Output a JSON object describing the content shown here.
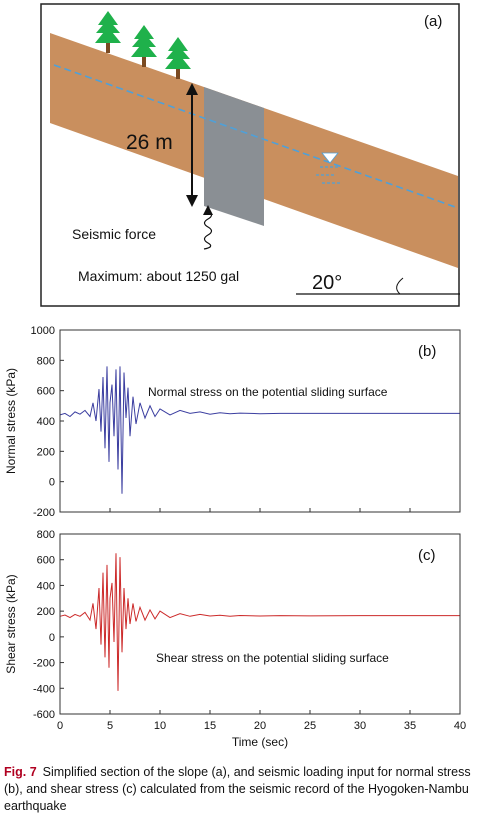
{
  "panel_a": {
    "label": "(a)",
    "depth_label": "26 m",
    "force_label": "Seismic force",
    "max_label": "Maximum: about 1250 gal",
    "angle_label": "20°",
    "colors": {
      "soil": "#c98f5e",
      "zone": "#8a8f94",
      "tree": "#1fb14b",
      "water": "#4fa0d8"
    }
  },
  "caption": {
    "fig": "Fig. 7",
    "text": "Simplified section of the slope (a), and seismic loading input for normal stress (b), and shear stress (c) calculated from the seismic record of the Hyogoken-Nambu earthquake"
  },
  "chart_data": [
    {
      "type": "line",
      "panel_label": "(b)",
      "annotation": "Normal stress on the potential sliding surface",
      "ylabel": "Normal stress (kPa)",
      "xlabel": "",
      "xlim": [
        0,
        40
      ],
      "ylim": [
        -200,
        1000
      ],
      "yticks": [
        -200,
        0,
        200,
        400,
        600,
        800,
        1000
      ],
      "xticks": [
        0,
        5,
        10,
        15,
        20,
        25,
        30,
        35,
        40
      ],
      "color": "#3b3ea0",
      "series": [
        {
          "x": [
            0,
            0.5,
            1,
            1.5,
            2,
            2.5,
            3,
            3.3,
            3.6,
            3.9,
            4.1,
            4.3,
            4.5,
            4.7,
            4.9,
            5.0,
            5.2,
            5.4,
            5.6,
            5.8,
            6.0,
            6.2,
            6.4,
            6.6,
            6.8,
            7.0,
            7.3,
            7.6,
            8,
            8.5,
            9,
            9.5,
            10,
            11,
            12,
            13,
            14,
            15,
            16,
            17,
            18,
            20,
            22,
            25,
            30,
            35,
            40
          ],
          "y": [
            440,
            450,
            430,
            460,
            445,
            470,
            430,
            520,
            400,
            610,
            330,
            690,
            220,
            760,
            130,
            520,
            640,
            300,
            740,
            80,
            760,
            -80,
            720,
            420,
            620,
            300,
            560,
            380,
            520,
            420,
            500,
            430,
            480,
            440,
            470,
            450,
            460,
            445,
            455,
            448,
            452,
            448,
            450,
            450,
            450,
            450,
            450
          ]
        }
      ]
    },
    {
      "type": "line",
      "panel_label": "(c)",
      "annotation": "Shear stress on the potential sliding surface",
      "ylabel": "Shear stress (kPa)",
      "xlabel": "Time (sec)",
      "xlim": [
        0,
        40
      ],
      "ylim": [
        -600,
        800
      ],
      "yticks": [
        -600,
        -400,
        -200,
        0,
        200,
        400,
        600,
        800
      ],
      "xticks": [
        0,
        5,
        10,
        15,
        20,
        25,
        30,
        35,
        40
      ],
      "color": "#cc2a2a",
      "series": [
        {
          "x": [
            0,
            0.5,
            1,
            1.5,
            2,
            2.5,
            3,
            3.3,
            3.6,
            3.9,
            4.1,
            4.3,
            4.5,
            4.7,
            4.9,
            5.0,
            5.2,
            5.4,
            5.6,
            5.8,
            6.0,
            6.2,
            6.4,
            6.6,
            6.8,
            7.0,
            7.3,
            7.6,
            8,
            8.5,
            9,
            9.5,
            10,
            11,
            12,
            13,
            14,
            15,
            16,
            17,
            18,
            20,
            22,
            25,
            30,
            35,
            40
          ],
          "y": [
            160,
            170,
            150,
            175,
            160,
            190,
            130,
            260,
            60,
            380,
            -60,
            500,
            -160,
            560,
            -240,
            300,
            420,
            -40,
            650,
            -420,
            620,
            -120,
            380,
            60,
            300,
            100,
            260,
            120,
            230,
            130,
            210,
            140,
            200,
            150,
            180,
            160,
            175,
            162,
            168,
            160,
            166,
            162,
            165,
            163,
            165,
            165,
            165
          ]
        }
      ]
    }
  ]
}
